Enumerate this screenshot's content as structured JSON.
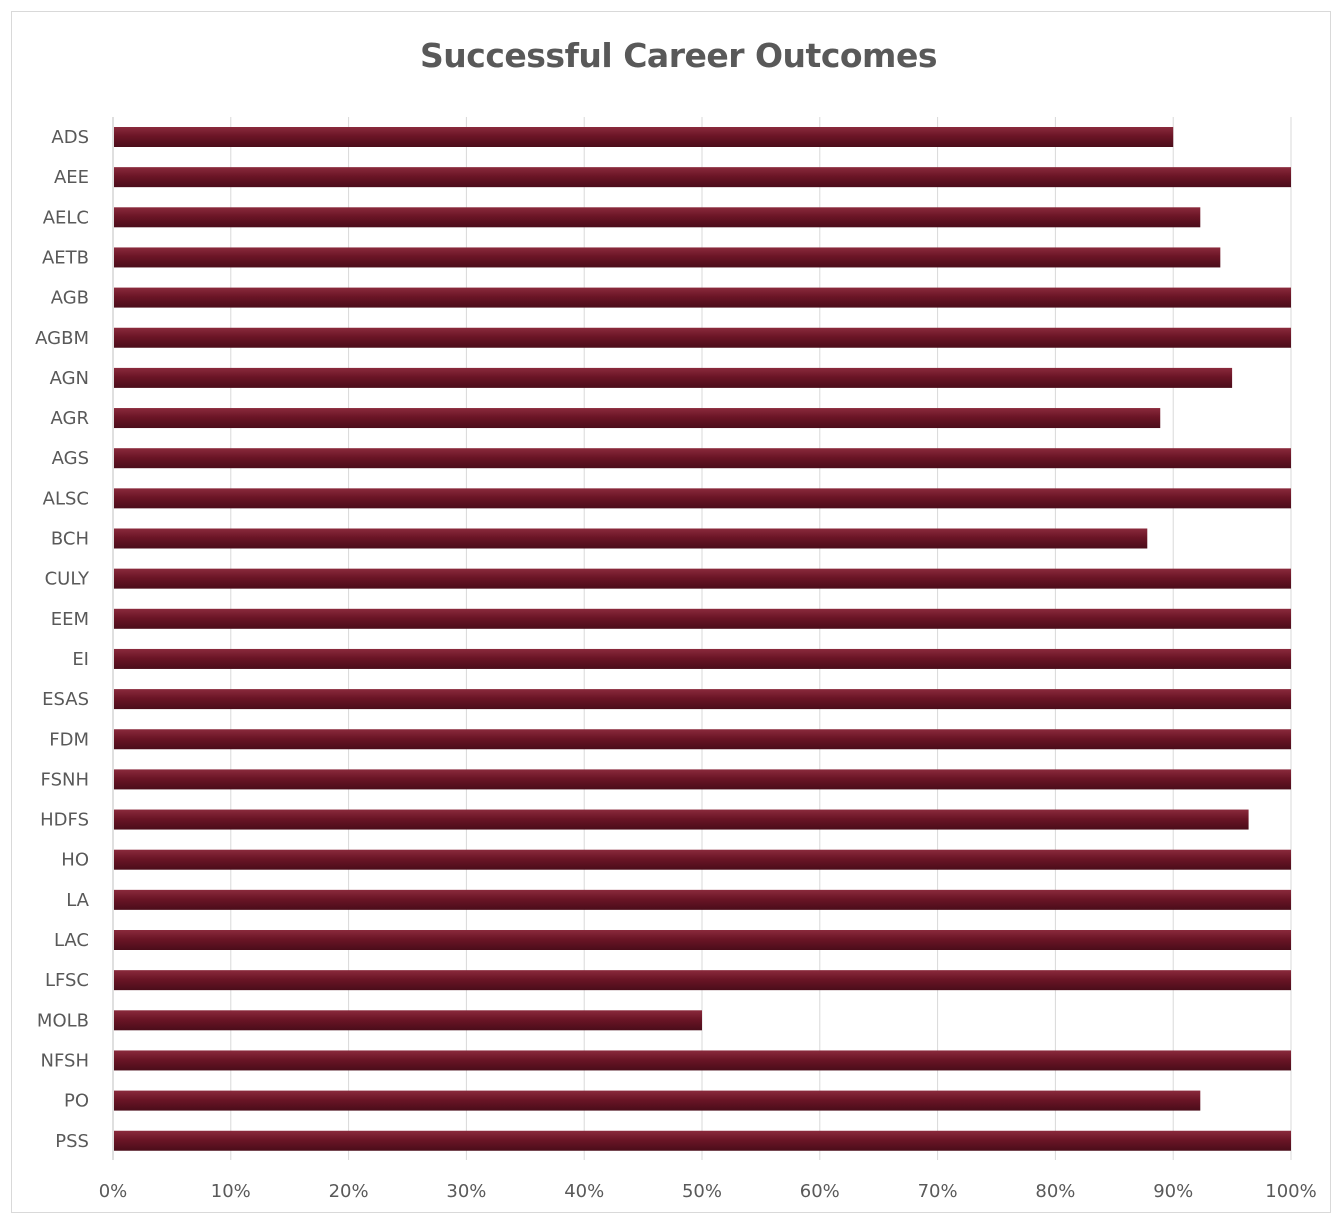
{
  "chart_data": {
    "type": "bar",
    "orientation": "horizontal",
    "title": "Successful Career Outcomes",
    "xlabel": "",
    "ylabel": "",
    "xlim": [
      0,
      1
    ],
    "x_ticks": [
      "0%",
      "10%",
      "20%",
      "30%",
      "40%",
      "50%",
      "60%",
      "70%",
      "80%",
      "90%",
      "100%"
    ],
    "grid": "vertical",
    "legend": "none",
    "bar_color": "#6b1526",
    "categories": [
      "ADS",
      "AEE",
      "AELC",
      "AETB",
      "AGB",
      "AGBM",
      "AGN",
      "AGR",
      "AGS",
      "ALSC",
      "BCH",
      "CULY",
      "EEM",
      "EI",
      "ESAS",
      "FDM",
      "FSNH",
      "HDFS",
      "HO",
      "LA",
      "LAC",
      "LFSC",
      "MOLB",
      "NFSH",
      "PO",
      "PSS"
    ],
    "values": [
      0.9,
      1.0,
      0.923,
      0.94,
      1.0,
      1.0,
      0.95,
      0.889,
      1.0,
      1.0,
      0.878,
      1.0,
      1.0,
      1.0,
      1.0,
      1.0,
      1.0,
      0.964,
      1.0,
      1.0,
      1.0,
      1.0,
      0.5,
      1.0,
      0.923,
      1.0
    ]
  }
}
